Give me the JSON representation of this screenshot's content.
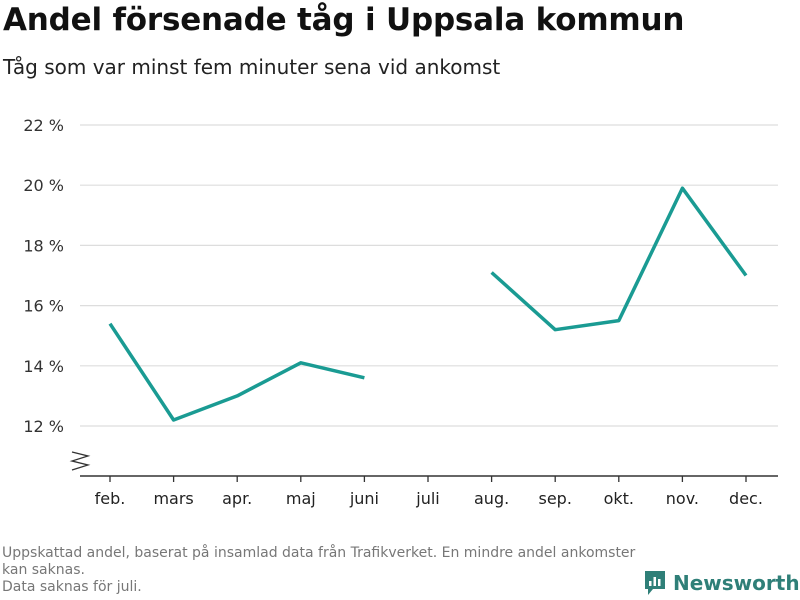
{
  "header": {
    "title": "Andel försenade tåg i Uppsala kommun",
    "subtitle": "Tåg som var minst fem minuter sena vid ankomst"
  },
  "footer": {
    "note_line1": "Uppskattad andel, baserat på insamlad data från Trafikverket. En mindre andel ankomster kan saknas.",
    "note_line2": "Data saknas för juli."
  },
  "brand": {
    "name": "Newsworthy",
    "icon": "newsworthy-logo-icon",
    "color": "#2f7f78"
  },
  "chart_data": {
    "type": "line",
    "categories": [
      "feb.",
      "mars",
      "apr.",
      "maj",
      "juni",
      "juli",
      "aug.",
      "sep.",
      "okt.",
      "nov.",
      "dec."
    ],
    "series": [
      {
        "values": [
          15.4,
          12.2,
          13.0,
          14.1,
          13.6,
          null,
          17.1,
          15.2,
          15.5,
          19.9,
          17.0
        ],
        "color": "#1a9b93"
      }
    ],
    "yticks": [
      12,
      14,
      16,
      18,
      20,
      22
    ],
    "ytick_labels": [
      "12 %",
      "14 %",
      "16 %",
      "18 %",
      "20 %",
      "22 %"
    ],
    "ylim": [
      10.5,
      22
    ],
    "axis_break": true,
    "grid": true,
    "xlabel": "",
    "ylabel": ""
  }
}
